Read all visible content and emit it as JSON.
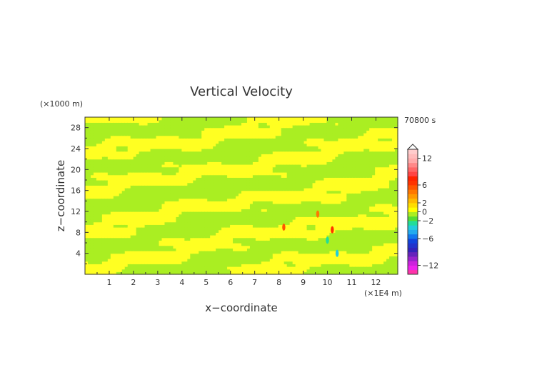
{
  "chart_data": {
    "type": "heatmap",
    "title": "Vertical Velocity",
    "xlabel": "x−coordinate",
    "ylabel": "z−coordinate",
    "x_unit": "(×1E4 m)",
    "y_unit": "(×1000 m)",
    "time_label": "70800 s",
    "xlim": [
      0,
      12.9
    ],
    "ylim": [
      0,
      30
    ],
    "x_ticks": [
      1,
      2,
      3,
      4,
      5,
      6,
      7,
      8,
      9,
      10,
      11,
      12
    ],
    "y_ticks": [
      4,
      8,
      12,
      16,
      20,
      24,
      28
    ],
    "colorbar": {
      "min": -14,
      "max": 14,
      "step": 1,
      "tick_values": [
        12,
        6,
        2,
        0,
        -2,
        -6,
        -12
      ],
      "tick_labels": [
        "12",
        "6",
        "2",
        "0",
        "−2",
        "−6",
        "−12"
      ],
      "colors": [
        "#ff33aa",
        "#ee22ee",
        "#cc22dd",
        "#9922cc",
        "#6622bb",
        "#3322bb",
        "#2233cc",
        "#1144dd",
        "#1177ee",
        "#22aaee",
        "#22ccdd",
        "#22dd99",
        "#55dd33",
        "#aaee22",
        "#ffff00",
        "#ffdd00",
        "#ffbb00",
        "#ff9900",
        "#ff7700",
        "#ff5500",
        "#ff3300",
        "#ff2200",
        "#ff4444",
        "#ff6666",
        "#ff8888",
        "#ffaaaa",
        "#ffbbbb",
        "#ffcccc"
      ]
    },
    "field_description": "two-level field: values near 0 (light green) and slightly positive (yellow), with isolated small extrema near x=9.5-10.5, z=5-10",
    "bands": [
      {
        "slope": 0.9,
        "offset": 2.0,
        "width": 1.4
      },
      {
        "slope": 0.7,
        "offset": 8.0,
        "width": 1.6
      },
      {
        "slope": 0.5,
        "offset": 14.0,
        "width": 1.3
      }
    ],
    "spots": [
      {
        "x": 10.2,
        "z": 8.5,
        "value": 6
      },
      {
        "x": 10.0,
        "z": 6.5,
        "value": -3
      },
      {
        "x": 8.2,
        "z": 9.0,
        "value": 5
      },
      {
        "x": 9.6,
        "z": 11.5,
        "value": 4
      },
      {
        "x": 10.4,
        "z": 4.0,
        "value": -4
      }
    ]
  }
}
